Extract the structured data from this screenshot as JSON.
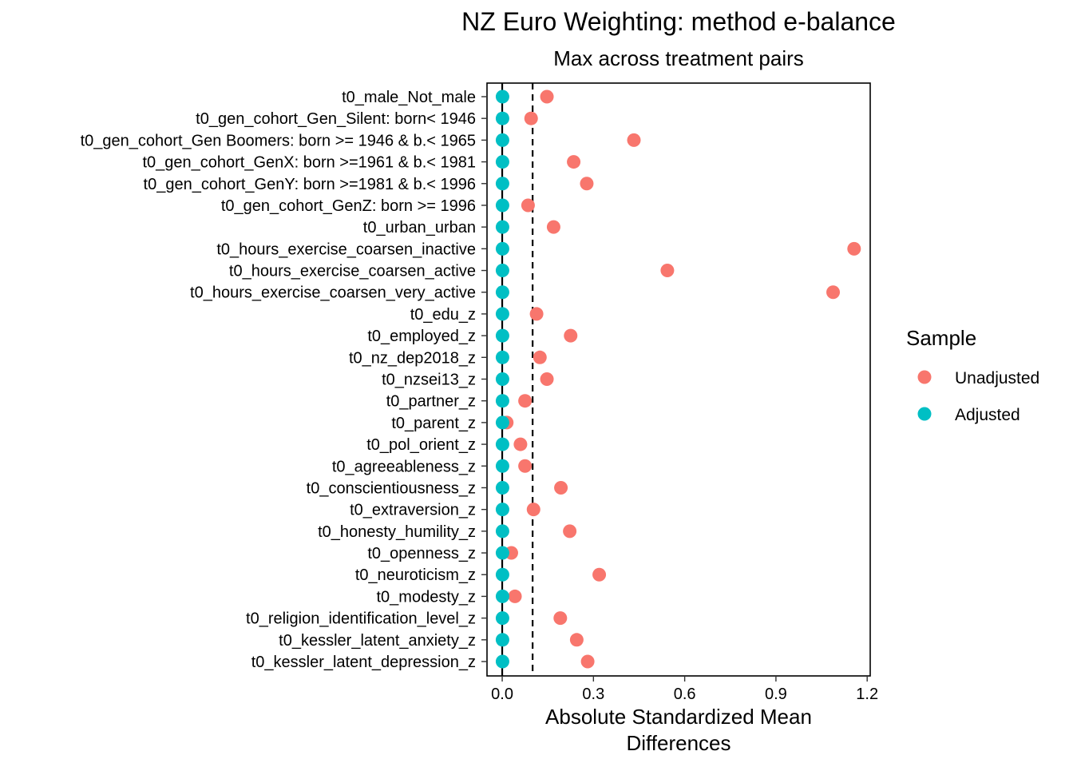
{
  "chart_data": {
    "type": "scatter",
    "title": "NZ Euro Weighting: method e-balance",
    "subtitle": "Max across treatment pairs",
    "xlabel_lines": [
      "Absolute Standardized Mean",
      "Differences"
    ],
    "ylabel": "",
    "xlim": [
      -0.05,
      1.21
    ],
    "x_ticks": [
      0.0,
      0.3,
      0.6,
      0.9,
      1.2
    ],
    "x_tick_labels": [
      "0.0",
      "0.3",
      "0.6",
      "0.9",
      "1.2"
    ],
    "reference_lines": [
      {
        "x": 0.0,
        "style": "solid"
      },
      {
        "x": 0.1,
        "style": "dashed"
      }
    ],
    "categories": [
      "t0_male_Not_male",
      "t0_gen_cohort_Gen_Silent: born< 1946",
      "t0_gen_cohort_Gen Boomers: born >= 1946 & b.< 1965",
      "t0_gen_cohort_GenX: born >=1961 & b.< 1981",
      "t0_gen_cohort_GenY: born >=1981 & b.< 1996",
      "t0_gen_cohort_GenZ: born >= 1996",
      "t0_urban_urban",
      "t0_hours_exercise_coarsen_inactive",
      "t0_hours_exercise_coarsen_active",
      "t0_hours_exercise_coarsen_very_active",
      "t0_edu_z",
      "t0_employed_z",
      "t0_nz_dep2018_z",
      "t0_nzsei13_z",
      "t0_partner_z",
      "t0_parent_z",
      "t0_pol_orient_z",
      "t0_agreeableness_z",
      "t0_conscientiousness_z",
      "t0_extraversion_z",
      "t0_honesty_humility_z",
      "t0_openness_z",
      "t0_neuroticism_z",
      "t0_modesty_z",
      "t0_religion_identification_level_z",
      "t0_kessler_latent_anxiety_z",
      "t0_kessler_latent_depression_z"
    ],
    "series": [
      {
        "name": "Unadjusted",
        "color": "#F8766D",
        "values": [
          0.147,
          0.095,
          0.433,
          0.235,
          0.278,
          0.085,
          0.169,
          1.157,
          0.543,
          1.088,
          0.113,
          0.225,
          0.124,
          0.147,
          0.075,
          0.015,
          0.06,
          0.075,
          0.193,
          0.103,
          0.222,
          0.03,
          0.319,
          0.042,
          0.191,
          0.245,
          0.281
        ]
      },
      {
        "name": "Adjusted",
        "color": "#00BFC4",
        "values": [
          0.001,
          0.001,
          0.001,
          0.001,
          0.001,
          0.001,
          0.001,
          0.001,
          0.001,
          0.001,
          0.001,
          0.001,
          0.001,
          0.001,
          0.001,
          0.001,
          0.001,
          0.001,
          0.001,
          0.001,
          0.001,
          0.001,
          0.001,
          0.001,
          0.001,
          0.001,
          0.001
        ]
      }
    ],
    "legend": {
      "title": "Sample",
      "position": "right",
      "items": [
        "Unadjusted",
        "Adjusted"
      ]
    }
  }
}
